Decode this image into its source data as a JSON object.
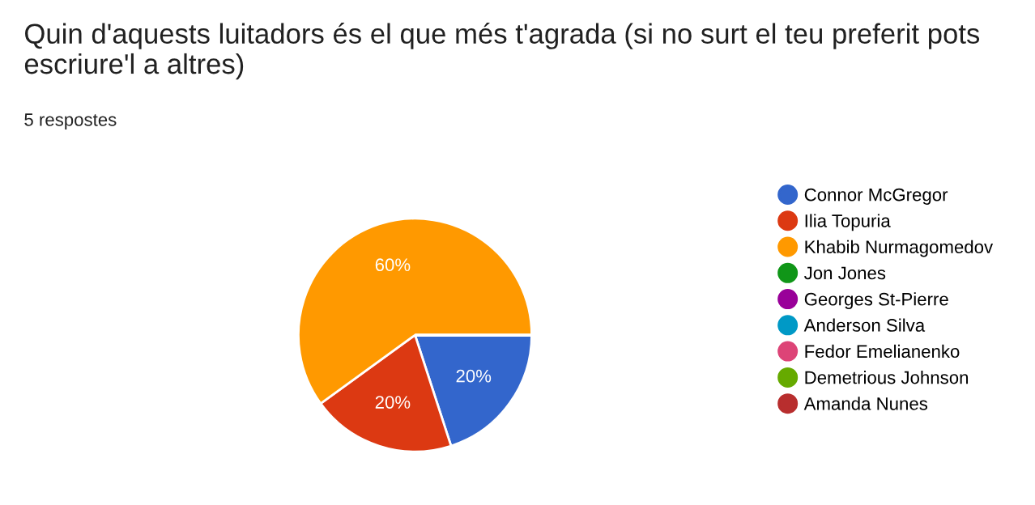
{
  "chart_data": {
    "type": "pie",
    "title": "Quin d'aquests luitadors és el que més t'agrada (si no surt el teu preferit pots escriure'l a altres)",
    "subtitle": "5 respostes",
    "categories": [
      "Connor McGregor",
      "Ilia Topuria",
      "Khabib Nurmagomedov",
      "Jon Jones",
      "Georges St-Pierre",
      "Anderson Silva",
      "Fedor Emelianenko",
      "Demetrious Johnson",
      "Amanda Nunes"
    ],
    "values": [
      20,
      20,
      60,
      0,
      0,
      0,
      0,
      0,
      0
    ],
    "value_labels": [
      "20%",
      "20%",
      "60%",
      null,
      null,
      null,
      null,
      null,
      null
    ],
    "colors": [
      "#3366cc",
      "#dc3912",
      "#ff9900",
      "#109618",
      "#990099",
      "#0099c6",
      "#dd4477",
      "#66aa00",
      "#b82e2e"
    ],
    "legend": "right"
  }
}
